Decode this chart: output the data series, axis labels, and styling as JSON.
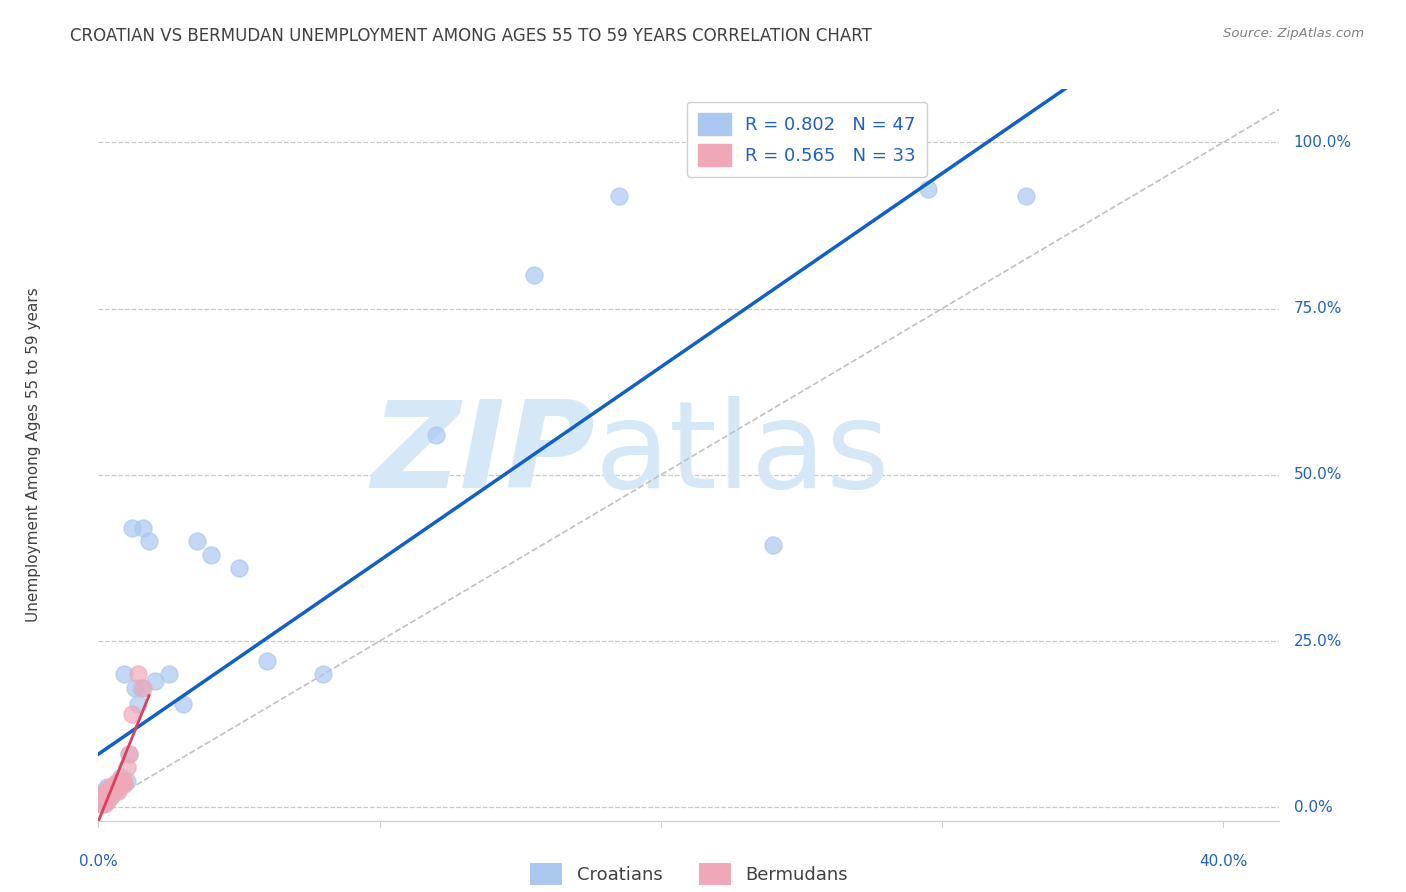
{
  "title": "CROATIAN VS BERMUDAN UNEMPLOYMENT AMONG AGES 55 TO 59 YEARS CORRELATION CHART",
  "source": "Source: ZipAtlas.com",
  "ylabel": "Unemployment Among Ages 55 to 59 years",
  "xlim": [
    0.0,
    0.42
  ],
  "ylim": [
    -0.02,
    1.08
  ],
  "xtick_positions": [
    0.0,
    0.1,
    0.2,
    0.3,
    0.4
  ],
  "xticklabels": [
    "0.0%",
    "",
    "",
    "",
    "40.0%"
  ],
  "ytick_positions": [
    0.0,
    0.25,
    0.5,
    0.75,
    1.0
  ],
  "yticklabels": [
    "0.0%",
    "25.0%",
    "50.0%",
    "75.0%",
    "100.0%"
  ],
  "croatians_R": 0.802,
  "croatians_N": 47,
  "bermudans_R": 0.565,
  "bermudans_N": 33,
  "croatians_color": "#aac8f0",
  "bermudans_color": "#f0a8b8",
  "croatians_line_color": "#1060c8",
  "bermudans_line_color": "#d84060",
  "grid_color": "#c8c8cc",
  "watermark_zip": "ZIP",
  "watermark_atlas": "atlas",
  "watermark_color": "#d4e8f8",
  "title_color": "#404040",
  "axis_label_color": "#2060c0",
  "tick_color": "#2060c0",
  "diagonal_line_color": "#c0c0c0",
  "background_color": "#ffffff",
  "legend_edge_color": "#d0d0d0",
  "source_color": "#808080",
  "croatians_x": [
    0.001,
    0.001,
    0.001,
    0.002,
    0.002,
    0.002,
    0.002,
    0.002,
    0.003,
    0.003,
    0.003,
    0.003,
    0.003,
    0.004,
    0.004,
    0.004,
    0.005,
    0.005,
    0.005,
    0.006,
    0.006,
    0.007,
    0.008,
    0.008,
    0.009,
    0.01,
    0.011,
    0.012,
    0.013,
    0.014,
    0.015,
    0.016,
    0.018,
    0.02,
    0.025,
    0.03,
    0.035,
    0.04,
    0.05,
    0.06,
    0.08,
    0.12,
    0.155,
    0.185,
    0.24,
    0.295,
    0.33
  ],
  "croatians_y": [
    0.005,
    0.01,
    0.015,
    0.005,
    0.01,
    0.015,
    0.02,
    0.025,
    0.01,
    0.015,
    0.02,
    0.025,
    0.03,
    0.015,
    0.02,
    0.025,
    0.02,
    0.025,
    0.03,
    0.025,
    0.035,
    0.03,
    0.035,
    0.045,
    0.2,
    0.04,
    0.08,
    0.42,
    0.18,
    0.155,
    0.18,
    0.42,
    0.4,
    0.19,
    0.2,
    0.155,
    0.4,
    0.38,
    0.36,
    0.22,
    0.2,
    0.56,
    0.8,
    0.92,
    0.395,
    0.93,
    0.92
  ],
  "bermudans_x": [
    0.001,
    0.001,
    0.001,
    0.002,
    0.002,
    0.002,
    0.002,
    0.003,
    0.003,
    0.003,
    0.003,
    0.004,
    0.004,
    0.004,
    0.004,
    0.005,
    0.005,
    0.005,
    0.006,
    0.006,
    0.006,
    0.007,
    0.007,
    0.007,
    0.008,
    0.008,
    0.009,
    0.009,
    0.01,
    0.011,
    0.012,
    0.014,
    0.016
  ],
  "bermudans_y": [
    0.005,
    0.01,
    0.015,
    0.005,
    0.01,
    0.015,
    0.02,
    0.01,
    0.015,
    0.02,
    0.025,
    0.015,
    0.02,
    0.025,
    0.03,
    0.02,
    0.025,
    0.03,
    0.025,
    0.03,
    0.035,
    0.025,
    0.03,
    0.04,
    0.035,
    0.04,
    0.035,
    0.04,
    0.06,
    0.08,
    0.14,
    0.2,
    0.18
  ]
}
